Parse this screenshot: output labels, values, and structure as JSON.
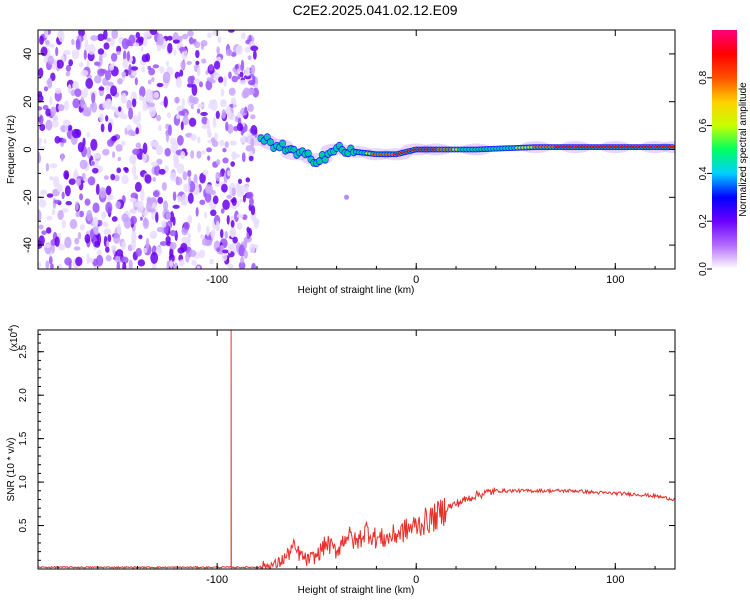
{
  "title": "C2E2.2025.041.02.12.E09",
  "chart_data": [
    {
      "type": "heatmap",
      "xlabel": "Height of straight line (km)",
      "ylabel": "Frequency (Hz)",
      "xlim": [
        -190,
        130
      ],
      "ylim": [
        -50,
        50
      ],
      "xticks": [
        -100,
        0,
        100
      ],
      "yticks": [
        -40,
        -20,
        0,
        20,
        40
      ],
      "noise_region_x": [
        -190,
        -80
      ],
      "noise_region_y": [
        -50,
        50
      ],
      "signal_band": [
        {
          "x": -78,
          "y": 4,
          "intensity": 0.45
        },
        {
          "x": -70,
          "y": 2,
          "intensity": 0.6
        },
        {
          "x": -60,
          "y": -2,
          "intensity": 0.55
        },
        {
          "x": -50,
          "y": -4,
          "intensity": 0.6
        },
        {
          "x": -40,
          "y": 0,
          "intensity": 0.55
        },
        {
          "x": -30,
          "y": -1,
          "intensity": 0.6
        },
        {
          "x": -20,
          "y": -2,
          "intensity": 0.8
        },
        {
          "x": -10,
          "y": -2,
          "intensity": 0.85
        },
        {
          "x": 0,
          "y": 0,
          "intensity": 0.9
        },
        {
          "x": 10,
          "y": 0,
          "intensity": 0.85
        },
        {
          "x": 30,
          "y": 0,
          "intensity": 0.6
        },
        {
          "x": 60,
          "y": 1,
          "intensity": 0.75
        },
        {
          "x": 80,
          "y": 1,
          "intensity": 0.95
        },
        {
          "x": 100,
          "y": 1,
          "intensity": 0.9
        },
        {
          "x": 120,
          "y": 1,
          "intensity": 0.95
        },
        {
          "x": 130,
          "y": 1,
          "intensity": 0.9
        }
      ],
      "outlier_point": {
        "x": -35,
        "y": -20
      }
    },
    {
      "type": "line",
      "xlabel": "Height of straight line (km)",
      "ylabel": "SNR (10 * v/v)",
      "y_multiplier": "(x10",
      "y_multiplier_exp": "4",
      "xlim": [
        -190,
        130
      ],
      "ylim": [
        0,
        2.75
      ],
      "xticks": [
        -100,
        0,
        100
      ],
      "yticks": [
        0.5,
        1.0,
        1.5,
        2.0,
        2.5
      ],
      "ytick_labels": [
        "0.5",
        "1.0",
        "1.5",
        "2.0",
        "2.5"
      ],
      "spike": {
        "x": -93,
        "y": 2.75
      },
      "series": [
        {
          "x": [
            -190,
            -80,
            -70,
            -65,
            -62,
            -60,
            -55,
            -50,
            -45,
            -40,
            -35,
            -30,
            -25,
            -20,
            -15,
            -10,
            -5,
            0,
            5,
            10,
            15,
            20,
            25,
            30,
            40,
            50,
            60,
            70,
            80,
            90,
            100,
            110,
            120,
            130
          ],
          "y": [
            0.02,
            0.02,
            0.05,
            0.15,
            0.25,
            0.2,
            0.1,
            0.15,
            0.3,
            0.2,
            0.4,
            0.3,
            0.45,
            0.35,
            0.35,
            0.4,
            0.45,
            0.5,
            0.55,
            0.6,
            0.7,
            0.75,
            0.8,
            0.85,
            0.9,
            0.9,
            0.9,
            0.9,
            0.9,
            0.88,
            0.87,
            0.86,
            0.84,
            0.8
          ]
        }
      ]
    }
  ],
  "colorbar": {
    "label": "Normalized spectral amplitude",
    "ticks": [
      "0.0",
      "0.2",
      "0.4",
      "0.6",
      "0.8"
    ],
    "tick_values": [
      0.0,
      0.2,
      0.4,
      0.6,
      0.8
    ],
    "range": [
      0,
      1
    ],
    "colors": [
      "#ffffff",
      "#b36bff",
      "#6a00ff",
      "#0000ff",
      "#00d0ff",
      "#00ff60",
      "#c8ff00",
      "#ffd000",
      "#ff5000",
      "#ff0000",
      "#ff0080"
    ]
  },
  "line_color": "#e8302a"
}
